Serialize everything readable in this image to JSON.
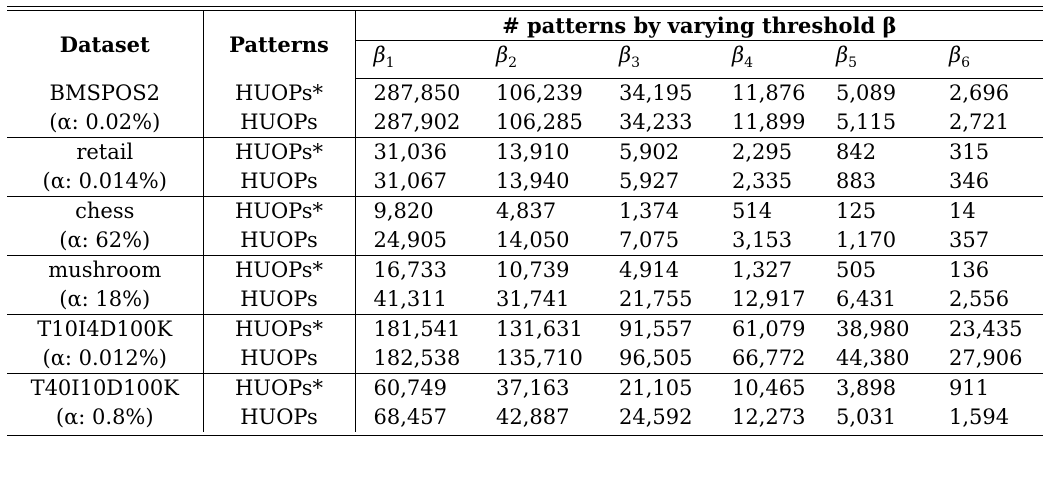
{
  "header": {
    "dataset": "Dataset",
    "patterns": "Patterns",
    "span_title": "# patterns by varying threshold β",
    "betas": [
      {
        "sym": "β",
        "sub": "1"
      },
      {
        "sym": "β",
        "sub": "2"
      },
      {
        "sym": "β",
        "sub": "3"
      },
      {
        "sym": "β",
        "sub": "4"
      },
      {
        "sym": "β",
        "sub": "5"
      },
      {
        "sym": "β",
        "sub": "6"
      }
    ]
  },
  "groups": [
    {
      "name": "BMSPOS2",
      "alpha": "(α: 0.02%)",
      "rows": [
        {
          "pattern": "HUOPs*",
          "values": [
            "287,850",
            "106,239",
            "34,195",
            "11,876",
            "5,089",
            "2,696"
          ]
        },
        {
          "pattern": "HUOPs",
          "values": [
            "287,902",
            "106,285",
            "34,233",
            "11,899",
            "5,115",
            "2,721"
          ]
        }
      ]
    },
    {
      "name": "retail",
      "alpha": "(α: 0.014%)",
      "rows": [
        {
          "pattern": "HUOPs*",
          "values": [
            "31,036",
            "13,910",
            "5,902",
            "2,295",
            "842",
            "315"
          ]
        },
        {
          "pattern": "HUOPs",
          "values": [
            "31,067",
            "13,940",
            "5,927",
            "2,335",
            "883",
            "346"
          ]
        }
      ]
    },
    {
      "name": "chess",
      "alpha": "(α: 62%)",
      "rows": [
        {
          "pattern": "HUOPs*",
          "values": [
            "9,820",
            "4,837",
            "1,374",
            "514",
            "125",
            "14"
          ]
        },
        {
          "pattern": "HUOPs",
          "values": [
            "24,905",
            "14,050",
            "7,075",
            "3,153",
            "1,170",
            "357"
          ]
        }
      ]
    },
    {
      "name": "mushroom",
      "alpha": "(α: 18%)",
      "rows": [
        {
          "pattern": "HUOPs*",
          "values": [
            "16,733",
            "10,739",
            "4,914",
            "1,327",
            "505",
            "136"
          ]
        },
        {
          "pattern": "HUOPs",
          "values": [
            "41,311",
            "31,741",
            "21,755",
            "12,917",
            "6,431",
            "2,556"
          ]
        }
      ]
    },
    {
      "name": "T10I4D100K",
      "alpha": "(α: 0.012%)",
      "rows": [
        {
          "pattern": "HUOPs*",
          "values": [
            "181,541",
            "131,631",
            "91,557",
            "61,079",
            "38,980",
            "23,435"
          ]
        },
        {
          "pattern": "HUOPs",
          "values": [
            "182,538",
            "135,710",
            "96,505",
            "66,772",
            "44,380",
            "27,906"
          ]
        }
      ]
    },
    {
      "name": "T40I10D100K",
      "alpha": "(α: 0.8%)",
      "rows": [
        {
          "pattern": "HUOPs*",
          "values": [
            "60,749",
            "37,163",
            "21,105",
            "10,465",
            "3,898",
            "911"
          ]
        },
        {
          "pattern": "HUOPs",
          "values": [
            "68,457",
            "42,887",
            "24,592",
            "12,273",
            "5,031",
            "1,594"
          ]
        }
      ]
    }
  ]
}
